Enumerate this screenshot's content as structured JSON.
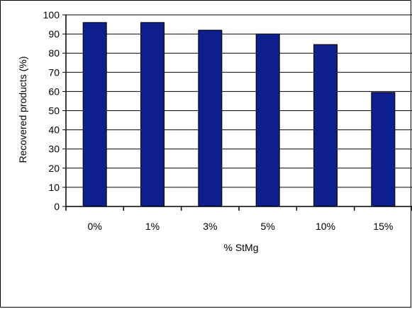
{
  "chart_data": {
    "type": "bar",
    "categories": [
      "0%",
      "1%",
      "3%",
      "5%",
      "10%",
      "15%"
    ],
    "values": [
      96,
      96,
      92,
      90,
      84.5,
      59.5
    ],
    "xlabel": "% StMg",
    "ylabel": "Recovered products (%)",
    "ylim": [
      0,
      100
    ],
    "yticks": [
      0,
      10,
      20,
      30,
      40,
      50,
      60,
      70,
      80,
      90,
      100
    ],
    "grid": true,
    "legend": "none",
    "colors": {
      "bar": "#0c1f8c",
      "bar_edge": "#000000",
      "grid": "#000000"
    }
  }
}
